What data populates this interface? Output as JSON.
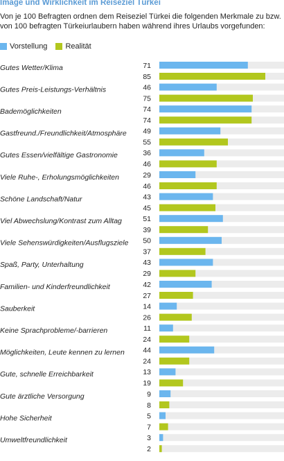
{
  "colors": {
    "vorstellung": "#6bb6ee",
    "realitaet": "#b2c71e",
    "track": "#ececec",
    "title": "#5b9bd5"
  },
  "chart_data": {
    "type": "bar",
    "orientation": "horizontal",
    "title": "Image und Wirklichkeit im Reiseziel Türkei",
    "subtitle": "Von je 100 Befragten ordnen dem Reiseziel Türkei die folgenden Merkmale zu bzw. von 100 befragten Türkeiurlaubern haben während ihres Urlaubs vorgefunden:",
    "legend": [
      "Vorstellung",
      "Realität"
    ],
    "legend_position": "top-left",
    "xlim": [
      0,
      100
    ],
    "grid": false,
    "categories": [
      "Gutes Wetter/Klima",
      "Gutes Preis-Leistungs-Verhältnis",
      "Bademöglichkeiten",
      "Gastfreund./Freundlichkeit/Atmosphäre",
      "Gutes Essen/vielfältige Gastronomie",
      "Viele Ruhe-, Erholungsmöglichkeiten",
      "Schöne Landschaft/Natur",
      "Viel Abwechslung/Kontrast zum Alltag",
      "Viele Sehenswürdigkeiten/Ausflugsziele",
      "Spaß, Party, Unterhaltung",
      "Familien- und Kinderfreundlichkeit",
      "Sauberkeit",
      "Keine Sprachprobleme/-barrieren",
      "Möglichkeiten, Leute kennen zu lernen",
      "Gute, schnelle Erreichbarkeit",
      "Gute ärztliche Versorgung",
      "Hohe Sicherheit",
      "Umweltfreundlichkeit"
    ],
    "series": [
      {
        "name": "Vorstellung",
        "values": [
          71,
          46,
          74,
          49,
          36,
          29,
          43,
          51,
          50,
          43,
          42,
          14,
          11,
          44,
          13,
          9,
          5,
          3
        ]
      },
      {
        "name": "Realität",
        "values": [
          85,
          75,
          74,
          55,
          46,
          46,
          45,
          39,
          37,
          29,
          27,
          26,
          24,
          24,
          19,
          8,
          7,
          2
        ]
      }
    ]
  }
}
